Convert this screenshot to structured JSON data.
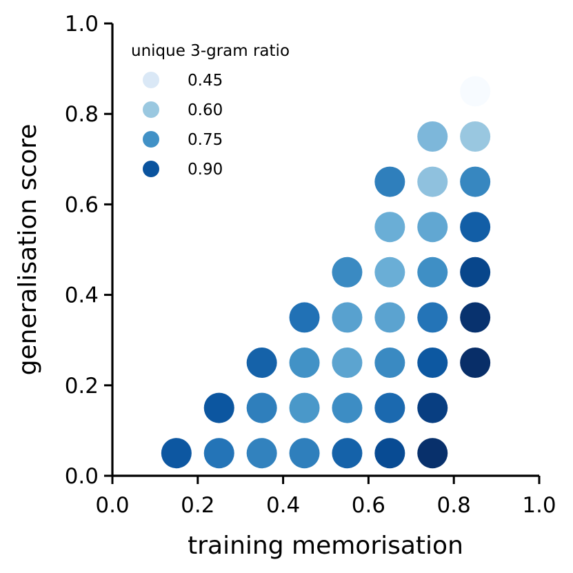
{
  "chart_data": {
    "type": "scatter",
    "title": "",
    "xlabel": "training memorisation",
    "ylabel": "generalisation score",
    "xlim": [
      0.0,
      1.0
    ],
    "ylim": [
      0.0,
      1.0
    ],
    "xticks": [
      "0.0",
      "0.2",
      "0.4",
      "0.6",
      "0.8",
      "1.0"
    ],
    "yticks": [
      "0.0",
      "0.2",
      "0.4",
      "0.6",
      "0.8",
      "1.0"
    ],
    "grid": false,
    "color_variable": "unique 3-gram ratio",
    "colormap": "Blues",
    "color_range": [
      0.4,
      1.0
    ],
    "legend": {
      "title": "unique 3-gram ratio",
      "placement": "top-left",
      "entries": [
        {
          "label": "0.45",
          "value": 0.45,
          "color": "#dae8f6"
        },
        {
          "label": "0.60",
          "value": 0.6,
          "color": "#9ac8e0"
        },
        {
          "label": "0.75",
          "value": 0.75,
          "color": "#4191c6"
        },
        {
          "label": "0.90",
          "value": 0.9,
          "color": "#0a539e"
        }
      ]
    },
    "points": [
      {
        "x": 0.15,
        "y": 0.05,
        "value": 0.89,
        "color": "#0d57a1"
      },
      {
        "x": 0.25,
        "y": 0.05,
        "value": 0.81,
        "color": "#2474b7"
      },
      {
        "x": 0.35,
        "y": 0.05,
        "value": 0.78,
        "color": "#3282be"
      },
      {
        "x": 0.45,
        "y": 0.05,
        "value": 0.79,
        "color": "#2f7fbc"
      },
      {
        "x": 0.55,
        "y": 0.05,
        "value": 0.85,
        "color": "#1562a9"
      },
      {
        "x": 0.65,
        "y": 0.05,
        "value": 0.91,
        "color": "#084b93"
      },
      {
        "x": 0.75,
        "y": 0.05,
        "value": 0.97,
        "color": "#08306b"
      },
      {
        "x": 0.25,
        "y": 0.15,
        "value": 0.89,
        "color": "#0c56a0"
      },
      {
        "x": 0.35,
        "y": 0.15,
        "value": 0.79,
        "color": "#2f7fbc"
      },
      {
        "x": 0.45,
        "y": 0.15,
        "value": 0.72,
        "color": "#4a98c9"
      },
      {
        "x": 0.55,
        "y": 0.15,
        "value": 0.75,
        "color": "#3d8dc4"
      },
      {
        "x": 0.65,
        "y": 0.15,
        "value": 0.83,
        "color": "#1b69af"
      },
      {
        "x": 0.75,
        "y": 0.15,
        "value": 0.93,
        "color": "#083e81"
      },
      {
        "x": 0.35,
        "y": 0.25,
        "value": 0.85,
        "color": "#1562a9"
      },
      {
        "x": 0.45,
        "y": 0.25,
        "value": 0.74,
        "color": "#4292c6"
      },
      {
        "x": 0.55,
        "y": 0.25,
        "value": 0.69,
        "color": "#5ca4d0"
      },
      {
        "x": 0.65,
        "y": 0.25,
        "value": 0.76,
        "color": "#3a8ac2"
      },
      {
        "x": 0.75,
        "y": 0.25,
        "value": 0.88,
        "color": "#0d58a1"
      },
      {
        "x": 0.85,
        "y": 0.25,
        "value": 0.98,
        "color": "#082e68"
      },
      {
        "x": 0.45,
        "y": 0.35,
        "value": 0.82,
        "color": "#2171b5"
      },
      {
        "x": 0.55,
        "y": 0.35,
        "value": 0.7,
        "color": "#58a1cf"
      },
      {
        "x": 0.65,
        "y": 0.35,
        "value": 0.69,
        "color": "#5ba3d0"
      },
      {
        "x": 0.75,
        "y": 0.35,
        "value": 0.81,
        "color": "#2474b7"
      },
      {
        "x": 0.85,
        "y": 0.35,
        "value": 0.96,
        "color": "#08326e"
      },
      {
        "x": 0.55,
        "y": 0.45,
        "value": 0.76,
        "color": "#3a8ac2"
      },
      {
        "x": 0.65,
        "y": 0.45,
        "value": 0.66,
        "color": "#6aaed6"
      },
      {
        "x": 0.75,
        "y": 0.45,
        "value": 0.75,
        "color": "#3f8fc5"
      },
      {
        "x": 0.85,
        "y": 0.45,
        "value": 0.92,
        "color": "#08468b"
      },
      {
        "x": 0.65,
        "y": 0.55,
        "value": 0.67,
        "color": "#6aaed6"
      },
      {
        "x": 0.75,
        "y": 0.55,
        "value": 0.68,
        "color": "#61a7d2"
      },
      {
        "x": 0.85,
        "y": 0.55,
        "value": 0.86,
        "color": "#125ea6"
      },
      {
        "x": 0.65,
        "y": 0.65,
        "value": 0.79,
        "color": "#2f7fbc"
      },
      {
        "x": 0.75,
        "y": 0.65,
        "value": 0.62,
        "color": "#8fc1de"
      },
      {
        "x": 0.85,
        "y": 0.65,
        "value": 0.77,
        "color": "#3787c0"
      },
      {
        "x": 0.75,
        "y": 0.75,
        "value": 0.64,
        "color": "#7db7da"
      },
      {
        "x": 0.85,
        "y": 0.75,
        "value": 0.61,
        "color": "#99c7e0"
      },
      {
        "x": 0.85,
        "y": 0.85,
        "value": 0.4,
        "color": "#f7fbff"
      }
    ]
  }
}
